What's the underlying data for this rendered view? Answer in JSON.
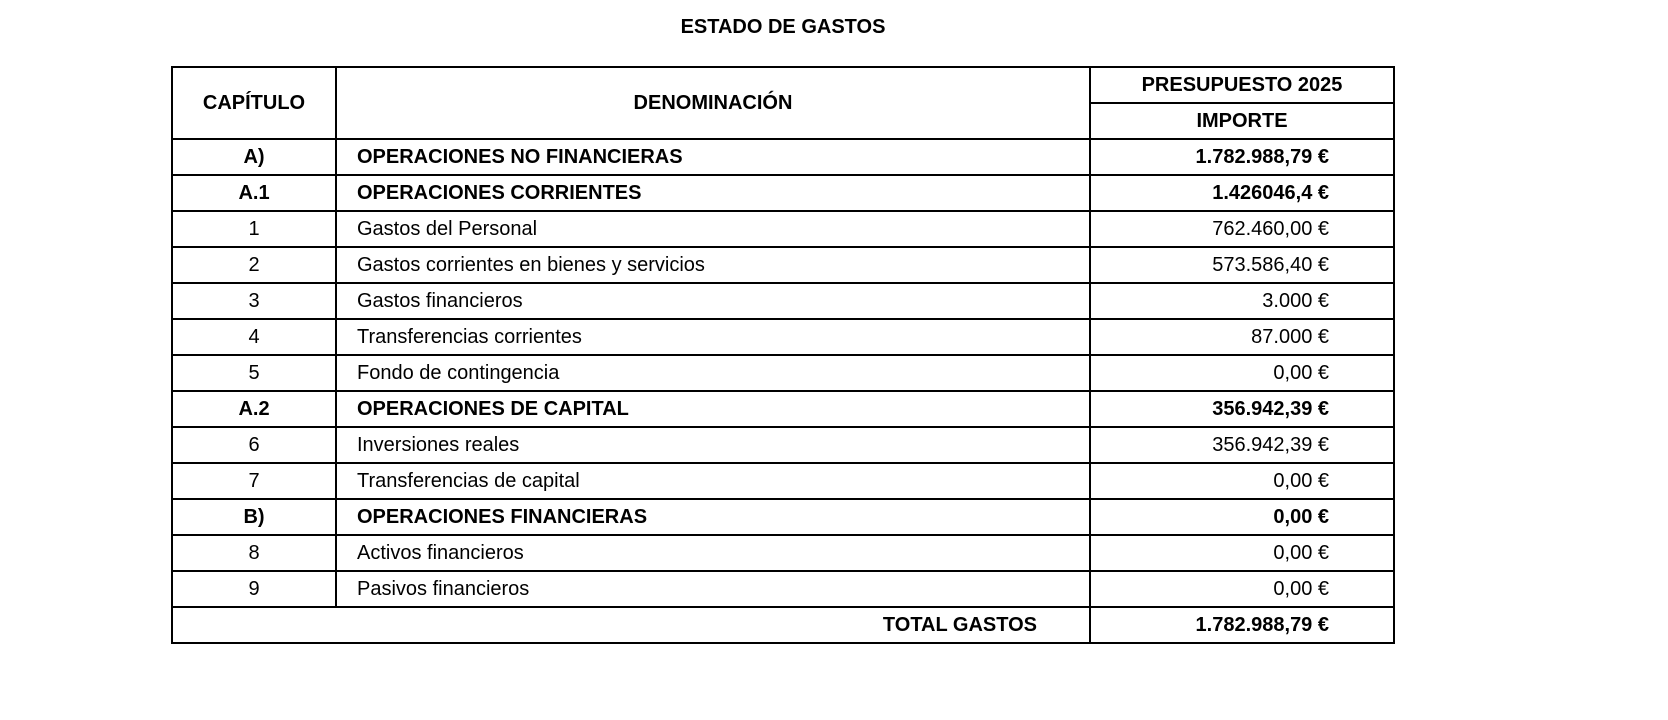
{
  "title": "ESTADO DE GASTOS",
  "headers": {
    "capitulo": "CAPÍTULO",
    "denominacion": "DENOMINACIÓN",
    "presupuesto": "PRESUPUESTO 2025",
    "importe": "IMPORTE"
  },
  "rows": [
    {
      "cap": "A)",
      "den": "OPERACIONES NO FINANCIERAS",
      "imp": "1.782.988,79 €",
      "bold": true
    },
    {
      "cap": "A.1",
      "den": "OPERACIONES CORRIENTES",
      "imp": "1.426046,4 €",
      "bold": true
    },
    {
      "cap": "1",
      "den": "Gastos del Personal",
      "imp": "762.460,00 €",
      "bold": false
    },
    {
      "cap": "2",
      "den": "Gastos corrientes en bienes y servicios",
      "imp": "573.586,40 €",
      "bold": false
    },
    {
      "cap": "3",
      "den": "Gastos financieros",
      "imp": "3.000 €",
      "bold": false
    },
    {
      "cap": "4",
      "den": "Transferencias corrientes",
      "imp": "87.000 €",
      "bold": false
    },
    {
      "cap": "5",
      "den": "Fondo de contingencia",
      "imp": "0,00 €",
      "bold": false
    },
    {
      "cap": "A.2",
      "den": "OPERACIONES DE CAPITAL",
      "imp": "356.942,39 €",
      "bold": true
    },
    {
      "cap": "6",
      "den": "Inversiones reales",
      "imp": "356.942,39 €",
      "bold": false
    },
    {
      "cap": "7",
      "den": "Transferencias de capital",
      "imp": "0,00 €",
      "bold": false
    },
    {
      "cap": "B)",
      "den": "OPERACIONES FINANCIERAS",
      "imp": "0,00 €",
      "bold": true
    },
    {
      "cap": "8",
      "den": "Activos financieros",
      "imp": "0,00 €",
      "bold": false
    },
    {
      "cap": "9",
      "den": "Pasivos financieros",
      "imp": "0,00 €",
      "bold": false
    }
  ],
  "total": {
    "label": "TOTAL GASTOS",
    "imp": "1.782.988,79 €"
  }
}
